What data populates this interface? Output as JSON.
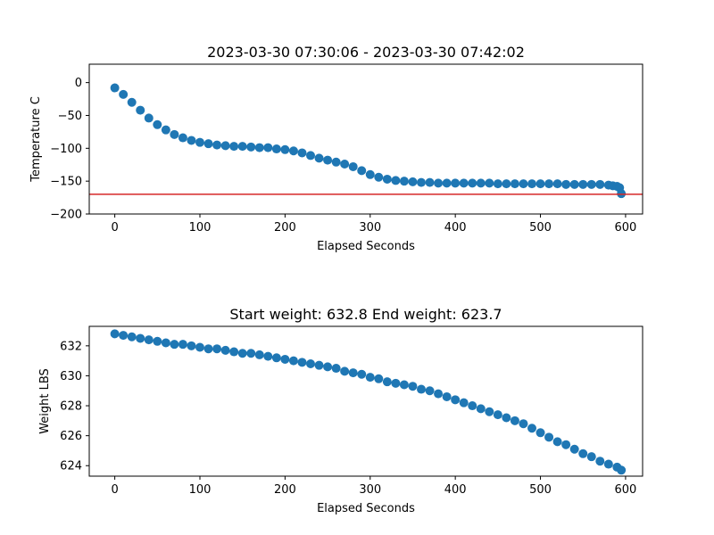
{
  "chart_data": [
    {
      "type": "scatter",
      "title": "2023-03-30 07:30:06 - 2023-03-30 07:42:02",
      "xlabel": "Elapsed Seconds",
      "ylabel": "Temperature C",
      "xlim": [
        -30,
        620
      ],
      "ylim": [
        -200,
        28
      ],
      "x_ticks": [
        0,
        100,
        200,
        300,
        400,
        500,
        600
      ],
      "y_ticks": [
        0,
        -50,
        -100,
        -150,
        -200
      ],
      "x_tick_labels": [
        "0",
        "100",
        "200",
        "300",
        "400",
        "500",
        "600"
      ],
      "y_tick_labels": [
        "0",
        "−50",
        "−100",
        "−150",
        "−200"
      ],
      "grid": false,
      "marker_color": "#1f77b4",
      "reference_line": {
        "y": -170,
        "color": "#d62728"
      },
      "series": [
        {
          "x": [
            0,
            10,
            20,
            30,
            40,
            50,
            60,
            70,
            80,
            90,
            100,
            110,
            120,
            130,
            140,
            150,
            160,
            170,
            180,
            190,
            200,
            210,
            220,
            230,
            240,
            250,
            260,
            270,
            280,
            290,
            300,
            310,
            320,
            330,
            340,
            350,
            360,
            370,
            380,
            390,
            400,
            410,
            420,
            430,
            440,
            450,
            460,
            470,
            480,
            490,
            500,
            510,
            520,
            530,
            540,
            550,
            560,
            570,
            580,
            585,
            590,
            593,
            595
          ],
          "y": [
            -8,
            -18,
            -30,
            -42,
            -54,
            -64,
            -72,
            -79,
            -84,
            -88,
            -91,
            -93,
            -95,
            -96,
            -97,
            -97,
            -98,
            -99,
            -99,
            -101,
            -102,
            -104,
            -107,
            -111,
            -115,
            -118,
            -121,
            -124,
            -128,
            -134,
            -140,
            -144,
            -147,
            -149,
            -150,
            -151,
            -152,
            -152,
            -153,
            -153,
            -153,
            -153,
            -153,
            -153,
            -153,
            -154,
            -154,
            -154,
            -154,
            -154,
            -154,
            -154,
            -154,
            -155,
            -155,
            -155,
            -155,
            -155,
            -156,
            -157,
            -158,
            -160,
            -169
          ]
        }
      ]
    },
    {
      "type": "scatter",
      "title": "Start weight: 632.8 End weight: 623.7",
      "xlabel": "Elapsed Seconds",
      "ylabel": "Weight LBS",
      "xlim": [
        -30,
        620
      ],
      "ylim": [
        623.3,
        633.3
      ],
      "x_ticks": [
        0,
        100,
        200,
        300,
        400,
        500,
        600
      ],
      "y_ticks": [
        624,
        626,
        628,
        630,
        632
      ],
      "x_tick_labels": [
        "0",
        "100",
        "200",
        "300",
        "400",
        "500",
        "600"
      ],
      "y_tick_labels": [
        "624",
        "626",
        "628",
        "630",
        "632"
      ],
      "grid": false,
      "marker_color": "#1f77b4",
      "series": [
        {
          "x": [
            0,
            10,
            20,
            30,
            40,
            50,
            60,
            70,
            80,
            90,
            100,
            110,
            120,
            130,
            140,
            150,
            160,
            170,
            180,
            190,
            200,
            210,
            220,
            230,
            240,
            250,
            260,
            270,
            280,
            290,
            300,
            310,
            320,
            330,
            340,
            350,
            360,
            370,
            380,
            390,
            400,
            410,
            420,
            430,
            440,
            450,
            460,
            470,
            480,
            490,
            500,
            510,
            520,
            530,
            540,
            550,
            560,
            570,
            580,
            590,
            595
          ],
          "y": [
            632.8,
            632.7,
            632.6,
            632.5,
            632.4,
            632.3,
            632.2,
            632.1,
            632.1,
            632.0,
            631.9,
            631.8,
            631.8,
            631.7,
            631.6,
            631.5,
            631.5,
            631.4,
            631.3,
            631.2,
            631.1,
            631.0,
            630.9,
            630.8,
            630.7,
            630.6,
            630.5,
            630.3,
            630.2,
            630.1,
            629.9,
            629.8,
            629.6,
            629.5,
            629.4,
            629.3,
            629.1,
            629.0,
            628.8,
            628.6,
            628.4,
            628.2,
            628.0,
            627.8,
            627.6,
            627.4,
            627.2,
            627.0,
            626.8,
            626.5,
            626.2,
            625.9,
            625.6,
            625.4,
            625.1,
            624.8,
            624.6,
            624.3,
            624.1,
            623.9,
            623.7
          ]
        }
      ]
    }
  ]
}
